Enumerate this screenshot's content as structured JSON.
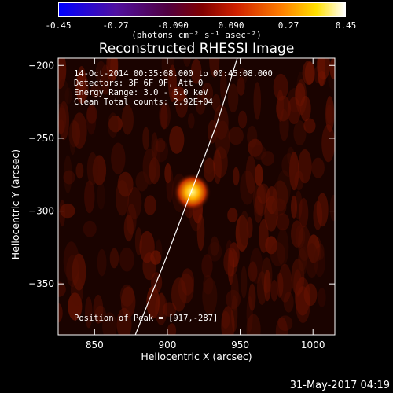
{
  "colorbar": {
    "ticks": [
      "-0.45",
      "-0.27",
      "-0.090",
      "0.090",
      "0.27",
      "0.45"
    ],
    "units": "(photons cm⁻² s⁻¹ asec⁻²)"
  },
  "title": "Reconstructed RHESSI Image",
  "info": {
    "time": "14-Oct-2014 00:35:08.000 to 00:45:08.000",
    "detectors": "Detectors: 3F 6F 9F, Att 0",
    "energy": "Energy Range: 3.0 - 6.0 keV",
    "clean": "Clean     Total counts: 2.92E+04",
    "peak": "Position of Peak = [917,-287]"
  },
  "datestamp": "31-May-2017 04:19",
  "chart_data": {
    "type": "heatmap",
    "title": "Reconstructed RHESSI Image",
    "xlabel": "Heliocentric X (arcsec)",
    "ylabel": "Heliocentric Y (arcsec)",
    "xlim": [
      825,
      1015
    ],
    "ylim": [
      -385,
      -195
    ],
    "xticks": [
      850,
      900,
      950,
      1000
    ],
    "yticks": [
      -200,
      -250,
      -300,
      -350
    ],
    "xtick_labels": [
      "850",
      "900",
      "950",
      "1000"
    ],
    "ytick_labels": [
      "−200",
      "−250",
      "−300",
      "−350"
    ],
    "colorbar_range": [
      -0.45,
      0.45
    ],
    "peak": {
      "x": 917,
      "y": -287
    },
    "limb_curve": [
      [
        878,
        -385
      ],
      [
        900,
        -330
      ],
      [
        917,
        -285
      ],
      [
        934,
        -240
      ],
      [
        948,
        -195
      ]
    ]
  }
}
